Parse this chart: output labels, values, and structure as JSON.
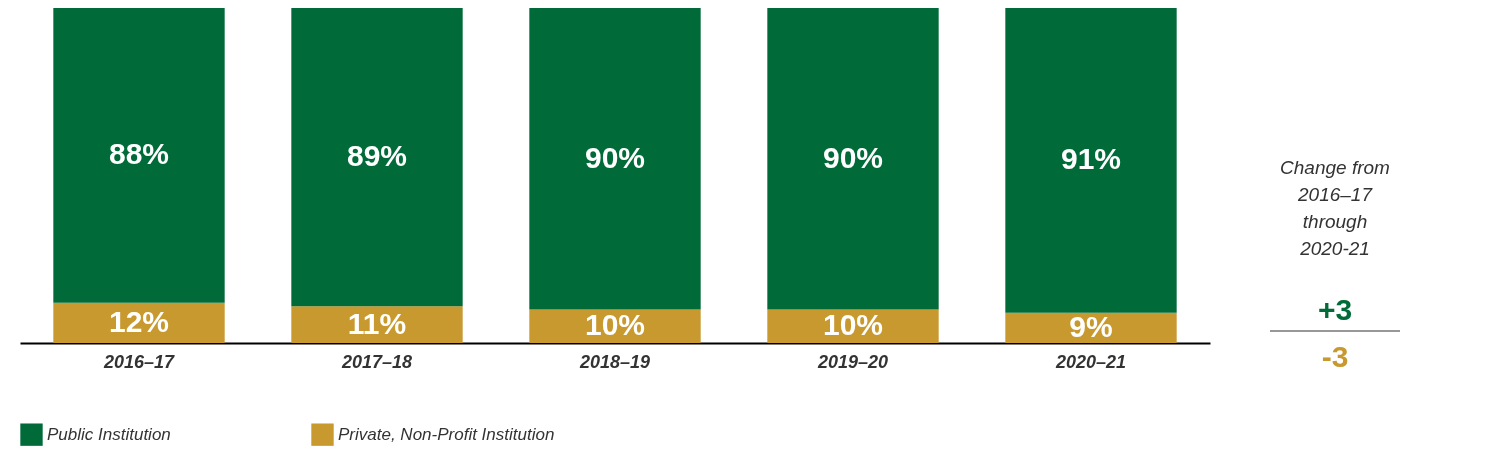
{
  "chart_data": {
    "type": "bar",
    "stacked": true,
    "categories": [
      "2016–17",
      "2017–18",
      "2018–19",
      "2019–20",
      "2020–21"
    ],
    "series": [
      {
        "name": "Private, Non-Profit Institution",
        "color": "#c8992e",
        "values": [
          12,
          11,
          10,
          10,
          9
        ],
        "value_labels": [
          "12%",
          "11%",
          "10%",
          "10%",
          "9%"
        ]
      },
      {
        "name": "Public Institution",
        "color": "#006b38",
        "values": [
          88,
          89,
          90,
          90,
          91
        ],
        "value_labels": [
          "88%",
          "89%",
          "90%",
          "90%",
          "91%"
        ]
      }
    ],
    "tick_labels": "x",
    "legend": "bottom",
    "grid": false,
    "annotations": [
      "Change from 2016–17 through 2020-21",
      "+3",
      "-3"
    ]
  }
}
